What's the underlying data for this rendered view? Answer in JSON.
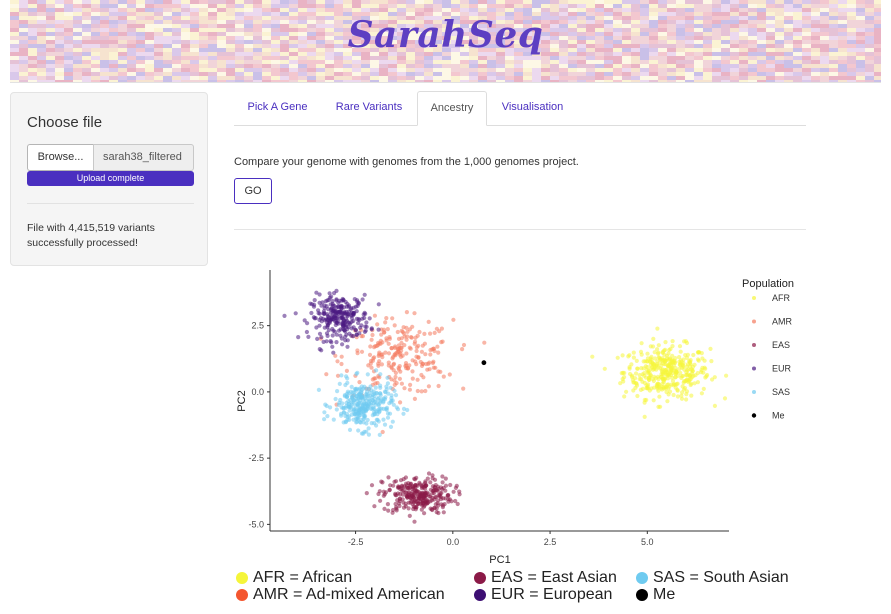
{
  "header": {
    "title": "SarahSeq"
  },
  "sidebar": {
    "choose_file_label": "Choose file",
    "browse_label": "Browse...",
    "filename": "sarah38_filtered",
    "upload_status": "Upload complete",
    "upload_progress": 1.0,
    "status_line1": "File with 4,415,519 variants",
    "status_line2": "successfully processed!"
  },
  "tabs": [
    {
      "label": "Pick A Gene",
      "active": false
    },
    {
      "label": "Rare Variants",
      "active": false
    },
    {
      "label": "Ancestry",
      "active": true
    },
    {
      "label": "Visualisation",
      "active": false
    }
  ],
  "ancestry": {
    "intro": "Compare your genome with genomes from the 1,000 genomes project.",
    "go_label": "GO"
  },
  "chart_data": {
    "type": "scatter",
    "xlabel": "PC1",
    "ylabel": "PC2",
    "xlim": [
      -4.7,
      7.1
    ],
    "ylim": [
      -5.25,
      4.6
    ],
    "xticks": [
      "-2.5",
      "0.0",
      "2.5",
      "5.0"
    ],
    "yticks": [
      "2.5",
      "0.0",
      "-2.5",
      "-5.0"
    ],
    "grid": false,
    "legend_title": "Population",
    "legend_position": "right",
    "series": [
      {
        "name": "AFR",
        "color": "#f5f53a",
        "center": [
          5.5,
          0.75
        ],
        "spread": [
          0.55,
          0.5
        ],
        "count": 380
      },
      {
        "name": "AMR",
        "color": "#f47a5e",
        "center": [
          -1.4,
          1.3
        ],
        "spread": [
          0.7,
          0.7
        ],
        "count": 230
      },
      {
        "name": "EAS",
        "color": "#8b1a47",
        "center": [
          -0.9,
          -3.9
        ],
        "spread": [
          0.45,
          0.35
        ],
        "count": 280
      },
      {
        "name": "EUR",
        "color": "#4b1a82",
        "center": [
          -2.9,
          2.8
        ],
        "spread": [
          0.38,
          0.42
        ],
        "count": 260
      },
      {
        "name": "SAS",
        "color": "#6fcbf0",
        "center": [
          -2.3,
          -0.5
        ],
        "spread": [
          0.38,
          0.45
        ],
        "count": 300
      },
      {
        "name": "Me",
        "color": "#000000",
        "points": [
          [
            0.8,
            1.1
          ]
        ]
      }
    ]
  },
  "footer_legend": {
    "afr": "AFR = African",
    "amr": "AMR = Ad-mixed American",
    "eas": "EAS = East Asian",
    "eur": "EUR = European",
    "sas": "SAS = South Asian",
    "me": "Me"
  }
}
